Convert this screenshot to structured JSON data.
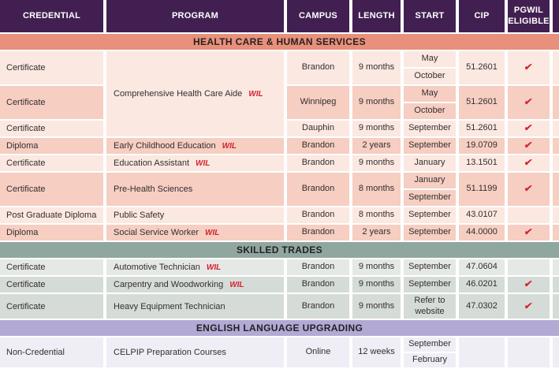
{
  "table": {
    "wil_label": "WIL",
    "check_glyph": "✔",
    "columns": [
      "CREDENTIAL",
      "PROGRAM",
      "CAMPUS",
      "LENGTH",
      "START",
      "CIP",
      "PGWIL ELIGIBLE"
    ],
    "sections": [
      {
        "title": "HEALTH CARE & HUMAN SERVICES",
        "theme": "health",
        "rows": [
          {
            "credential": "Certificate",
            "program": {
              "text": "Comprehensive Health Care Aide",
              "wil": true,
              "span_rows": 3
            },
            "campus": "Brandon",
            "length": "9 months",
            "start": [
              "May",
              "October"
            ],
            "cip": "51.2601",
            "pgwil": true,
            "shade": "light"
          },
          {
            "credential": "Certificate",
            "program": null,
            "campus": "Winnipeg",
            "length": "9 months",
            "start": [
              "May",
              "October"
            ],
            "cip": "51.2601",
            "pgwil": true,
            "shade": "dark"
          },
          {
            "credential": "Certificate",
            "program": null,
            "campus": "Dauphin",
            "length": "9 months",
            "start": [
              "September"
            ],
            "cip": "51.2601",
            "pgwil": true,
            "shade": "light"
          },
          {
            "credential": "Diploma",
            "program": {
              "text": "Early Childhood Education",
              "wil": true
            },
            "campus": "Brandon",
            "length": "2 years",
            "start": [
              "September"
            ],
            "cip": "19.0709",
            "pgwil": true,
            "shade": "dark"
          },
          {
            "credential": "Certificate",
            "program": {
              "text": "Education Assistant",
              "wil": true
            },
            "campus": "Brandon",
            "length": "9 months",
            "start": [
              "January"
            ],
            "cip": "13.1501",
            "pgwil": true,
            "shade": "light"
          },
          {
            "credential": "Certificate",
            "program": {
              "text": "Pre-Health Sciences",
              "wil": false
            },
            "campus": "Brandon",
            "length": "8 months",
            "start": [
              "January",
              "September"
            ],
            "cip": "51.1199",
            "pgwil": true,
            "shade": "dark"
          },
          {
            "credential": "Post Graduate Diploma",
            "program": {
              "text": "Public Safety",
              "wil": false
            },
            "campus": "Brandon",
            "length": "8 months",
            "start": [
              "September"
            ],
            "cip": "43.0107",
            "pgwil": false,
            "shade": "light"
          },
          {
            "credential": "Diploma",
            "program": {
              "text": "Social Service Worker",
              "wil": true
            },
            "campus": "Brandon",
            "length": "2 years",
            "start": [
              "September"
            ],
            "cip": "44.0000",
            "pgwil": true,
            "shade": "dark"
          }
        ]
      },
      {
        "title": "SKILLED TRADES",
        "theme": "trades",
        "rows": [
          {
            "credential": "Certificate",
            "program": {
              "text": "Automotive Technician",
              "wil": true
            },
            "campus": "Brandon",
            "length": "9 months",
            "start": [
              "September"
            ],
            "cip": "47.0604",
            "pgwil": false,
            "shade": "light"
          },
          {
            "credential": "Certificate",
            "program": {
              "text": "Carpentry and Woodworking",
              "wil": true
            },
            "campus": "Brandon",
            "length": "9 months",
            "start": [
              "September"
            ],
            "cip": "46.0201",
            "pgwil": true,
            "shade": "dark"
          },
          {
            "credential": "Certificate",
            "program": {
              "text": "Heavy Equipment Technician",
              "wil": false
            },
            "campus": "Brandon",
            "length": "9 months",
            "start": [
              "Refer to website"
            ],
            "cip": "47.0302",
            "pgwil": true,
            "shade": "dark",
            "h": "tall"
          }
        ]
      },
      {
        "title": "ENGLISH LANGUAGE UPGRADING",
        "theme": "english",
        "rows": [
          {
            "credential": "Non-Credential",
            "program": {
              "text": "CELPIP Preparation Courses",
              "wil": false
            },
            "campus": "Online",
            "length": "12 weeks",
            "start": [
              "September",
              "February"
            ],
            "cip": "",
            "pgwil": false,
            "shade": "light",
            "h": "short"
          }
        ]
      }
    ]
  },
  "colors": {
    "header_bg": "#412051",
    "header_text": "#ffffff",
    "band_health": "#e8907b",
    "band_trades": "#90a7a0",
    "band_english": "#b3a9d5",
    "row_health_light": "#fbe8e1",
    "row_health_dark": "#f6cec2",
    "row_trades_light": "#e5e8e4",
    "row_trades_dark": "#d5dcd7",
    "row_english_light": "#efeef6",
    "accent_red": "#d2232e",
    "body_text": "#332e30"
  }
}
